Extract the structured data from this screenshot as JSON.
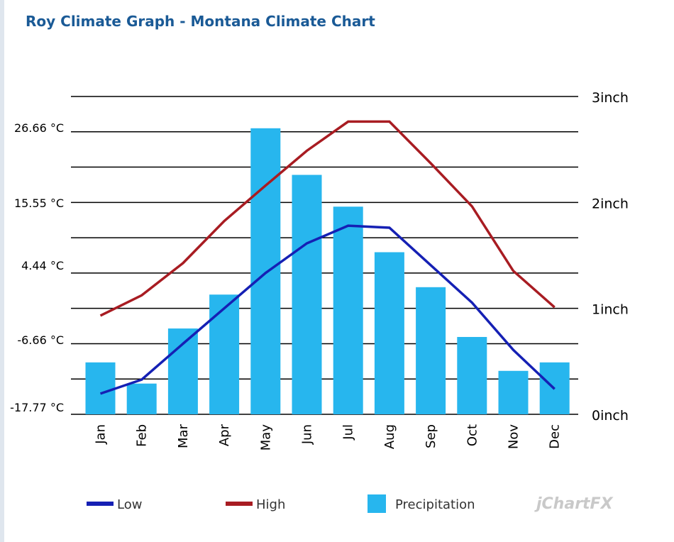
{
  "title": "Roy Climate Graph - Montana Climate Chart",
  "branding": "jChartFX",
  "chart_data": {
    "type": "bar",
    "categories": [
      "Jan",
      "Feb",
      "Mar",
      "Apr",
      "May",
      "Jun",
      "Jul",
      "Aug",
      "Sep",
      "Oct",
      "Nov",
      "Dec"
    ],
    "series": [
      {
        "name": "Precipitation",
        "type": "bar",
        "axis": "right",
        "color": "#27b6ee",
        "values": [
          0.49,
          0.29,
          0.81,
          1.13,
          2.7,
          2.26,
          1.96,
          1.53,
          1.2,
          0.73,
          0.41,
          0.49
        ]
      },
      {
        "name": "Low",
        "type": "line",
        "axis": "left",
        "color": "#1520b4",
        "values": [
          -13.8,
          -11.1,
          -4.2,
          2.6,
          9.4,
          15.1,
          18.5,
          18.1,
          10.9,
          3.7,
          -5.4,
          -12.9
        ]
      },
      {
        "name": "High",
        "type": "line",
        "axis": "left",
        "color": "#a81c22",
        "values": [
          1.2,
          5.1,
          11.3,
          19.4,
          26.2,
          32.9,
          38.5,
          38.5,
          30.5,
          22.2,
          9.8,
          2.8
        ]
      }
    ],
    "left_axis": {
      "ticks": [
        "26.66 °C",
        "15.55 °C",
        "4.44 °C",
        "-6.66 °C",
        "-17.77 °C"
      ],
      "ylim": [
        -17.77,
        43.33
      ]
    },
    "right_axis": {
      "ticks": [
        "3inch",
        "2inch",
        "1inch",
        "0inch"
      ],
      "ylim": [
        0,
        3
      ]
    },
    "grid": true,
    "legend": {
      "position": "bottom",
      "items": [
        "Low",
        "High",
        "Precipitation"
      ]
    }
  }
}
